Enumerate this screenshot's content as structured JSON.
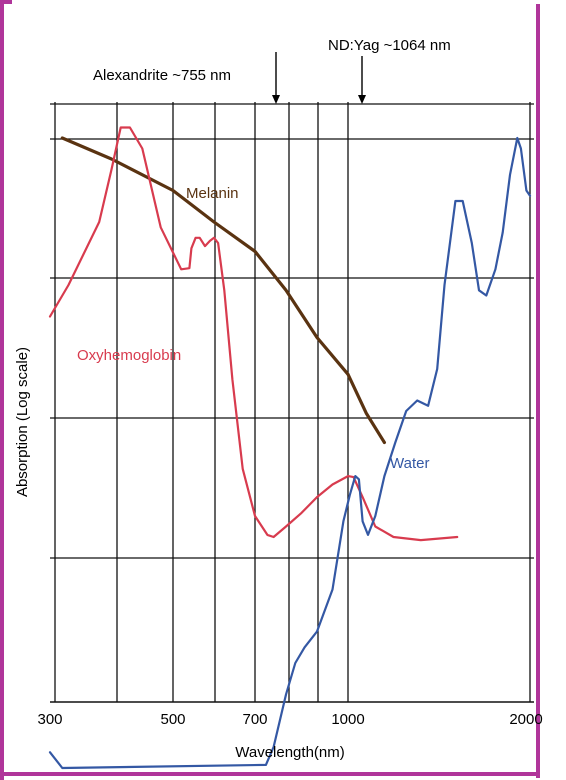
{
  "chart_data": {
    "type": "line",
    "xlabel": "Wavelength(nm)",
    "ylabel": "Absorption (Log scale)",
    "x_ticks": [
      {
        "value": 300,
        "label": "300"
      },
      {
        "value": 500,
        "label": "500"
      },
      {
        "value": 700,
        "label": "700"
      },
      {
        "value": 1000,
        "label": "1000"
      },
      {
        "value": 2000,
        "label": "2000"
      }
    ],
    "annotations": [
      {
        "text": "Alexandrite ~755 nm",
        "x": 755
      },
      {
        "text": "ND:Yag ~1064 nm",
        "x": 1064
      }
    ],
    "grid": true,
    "series": [
      {
        "name": "Melanin",
        "color": "#5a3311",
        "points": [
          [
            320,
            4.0
          ],
          [
            400,
            3.8
          ],
          [
            500,
            3.5
          ],
          [
            600,
            3.2
          ],
          [
            700,
            2.92
          ],
          [
            800,
            2.55
          ],
          [
            900,
            2.1
          ],
          [
            1000,
            1.75
          ],
          [
            1100,
            1.38
          ],
          [
            1200,
            1.1
          ]
        ]
      },
      {
        "name": "Oxyhemoglobin",
        "color": "#d83b4e",
        "points": [
          [
            300,
            2.3
          ],
          [
            330,
            2.6
          ],
          [
            380,
            3.2
          ],
          [
            400,
            3.7
          ],
          [
            415,
            4.1
          ],
          [
            430,
            4.1
          ],
          [
            450,
            3.9
          ],
          [
            480,
            3.15
          ],
          [
            520,
            2.75
          ],
          [
            540,
            2.76
          ],
          [
            545,
            2.95
          ],
          [
            555,
            3.05
          ],
          [
            565,
            3.05
          ],
          [
            578,
            2.97
          ],
          [
            590,
            3.02
          ],
          [
            600,
            3.05
          ],
          [
            610,
            3.0
          ],
          [
            625,
            2.55
          ],
          [
            645,
            1.7
          ],
          [
            670,
            0.85
          ],
          [
            700,
            0.4
          ],
          [
            740,
            0.22
          ],
          [
            760,
            0.2
          ],
          [
            800,
            0.3
          ],
          [
            850,
            0.43
          ],
          [
            900,
            0.58
          ],
          [
            950,
            0.7
          ],
          [
            1000,
            0.78
          ],
          [
            1030,
            0.77
          ],
          [
            1080,
            0.58
          ],
          [
            1150,
            0.3
          ],
          [
            1250,
            0.2
          ],
          [
            1400,
            0.17
          ],
          [
            1600,
            0.2
          ]
        ]
      },
      {
        "name": "Water",
        "color": "#3458a4",
        "points": [
          [
            300,
            -1.85
          ],
          [
            320,
            -2.0
          ],
          [
            735,
            -1.97
          ],
          [
            760,
            -1.8
          ],
          [
            800,
            -1.3
          ],
          [
            830,
            -1.0
          ],
          [
            860,
            -0.85
          ],
          [
            900,
            -0.7
          ],
          [
            950,
            -0.3
          ],
          [
            985,
            0.35
          ],
          [
            1010,
            0.6
          ],
          [
            1040,
            0.78
          ],
          [
            1060,
            0.75
          ],
          [
            1080,
            0.35
          ],
          [
            1110,
            0.22
          ],
          [
            1150,
            0.4
          ],
          [
            1200,
            0.78
          ],
          [
            1260,
            1.1
          ],
          [
            1320,
            1.4
          ],
          [
            1380,
            1.5
          ],
          [
            1440,
            1.45
          ],
          [
            1490,
            1.8
          ],
          [
            1530,
            2.6
          ],
          [
            1590,
            3.4
          ],
          [
            1630,
            3.4
          ],
          [
            1680,
            3.0
          ],
          [
            1720,
            2.55
          ],
          [
            1760,
            2.5
          ],
          [
            1810,
            2.75
          ],
          [
            1850,
            3.1
          ],
          [
            1890,
            3.65
          ],
          [
            1930,
            4.0
          ],
          [
            1950,
            3.9
          ],
          [
            1980,
            3.5
          ],
          [
            2000,
            3.45
          ]
        ]
      }
    ]
  }
}
